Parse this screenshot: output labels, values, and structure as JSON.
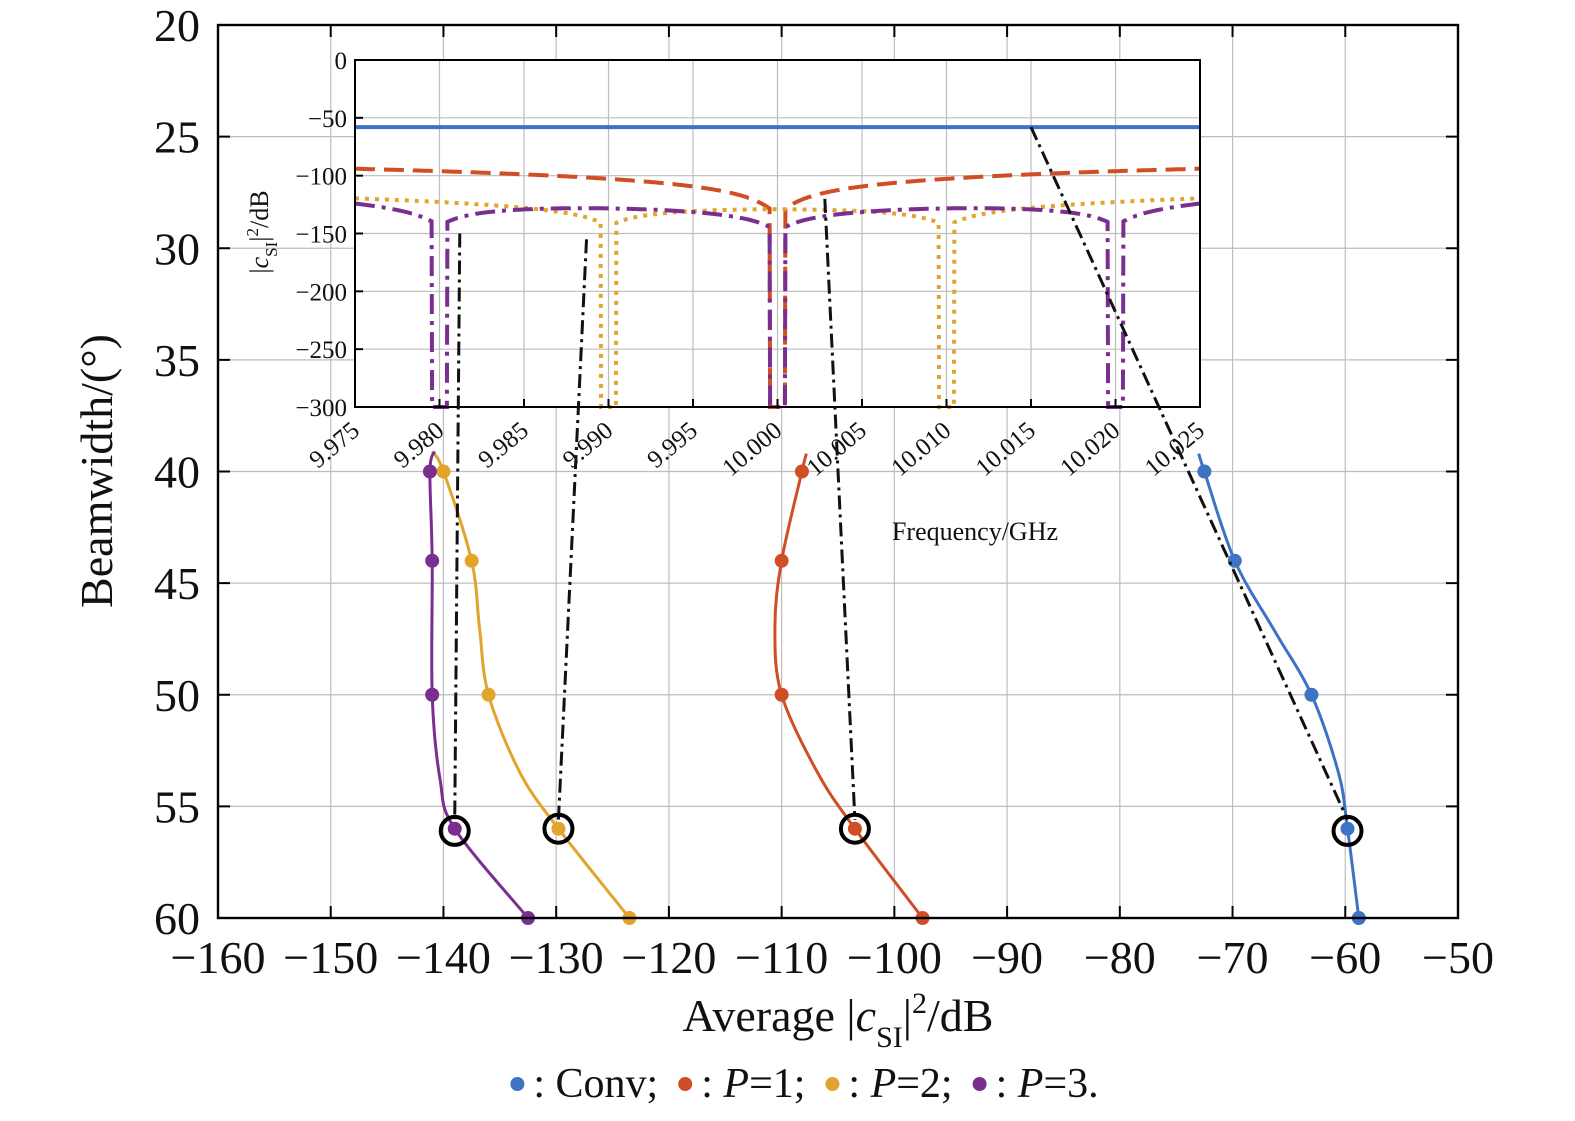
{
  "chart_data": [
    {
      "id": "main",
      "type": "line",
      "xlabel_parts": [
        "Average |",
        "c",
        "SI",
        "|",
        "2",
        "/dB"
      ],
      "ylabel": "Beamwidth/(°)",
      "xlim": [
        -160,
        -50
      ],
      "ylim": [
        20,
        60
      ],
      "y_reversed": true,
      "xticks": [
        -160,
        -150,
        -140,
        -130,
        -120,
        -110,
        -100,
        -90,
        -80,
        -70,
        -60,
        -50
      ],
      "xtick_labels": [
        "−160",
        "−150",
        "−140",
        "−130",
        "−120",
        "−110",
        "−100",
        "−90",
        "−80",
        "−70",
        "−60",
        "−50"
      ],
      "yticks": [
        20,
        25,
        30,
        35,
        40,
        45,
        50,
        55,
        60
      ],
      "ytick_labels": [
        "20",
        "25",
        "30",
        "35",
        "40",
        "45",
        "50",
        "55",
        "60"
      ],
      "grid": true,
      "series": [
        {
          "key": "conv",
          "name": "Conv",
          "color": "#3d72c4",
          "markers": [
            {
              "x": -72.5,
              "y": 40
            },
            {
              "x": -69.8,
              "y": 44
            },
            {
              "x": -63,
              "y": 50
            },
            {
              "x": -59.8,
              "y": 56
            },
            {
              "x": -58.8,
              "y": 60
            }
          ],
          "curve": [
            {
              "x": -73.0,
              "y": 39.2
            },
            {
              "x": -72.5,
              "y": 40
            },
            {
              "x": -69.8,
              "y": 44
            },
            {
              "x": -66.2,
              "y": 47.2
            },
            {
              "x": -63,
              "y": 50
            },
            {
              "x": -60.6,
              "y": 53.5
            },
            {
              "x": -59.8,
              "y": 56
            },
            {
              "x": -58.8,
              "y": 60
            }
          ]
        },
        {
          "key": "p1",
          "name": "P=1",
          "color": "#d04e25",
          "markers": [
            {
              "x": -108.2,
              "y": 40
            },
            {
              "x": -110,
              "y": 44
            },
            {
              "x": -110,
              "y": 50
            },
            {
              "x": -103.5,
              "y": 56
            },
            {
              "x": -97.5,
              "y": 60
            }
          ],
          "curve": [
            {
              "x": -107.8,
              "y": 39.2
            },
            {
              "x": -108.2,
              "y": 40
            },
            {
              "x": -110,
              "y": 44
            },
            {
              "x": -110.6,
              "y": 47
            },
            {
              "x": -110,
              "y": 50
            },
            {
              "x": -106.8,
              "y": 53.5
            },
            {
              "x": -103.5,
              "y": 56
            },
            {
              "x": -97.5,
              "y": 60
            }
          ]
        },
        {
          "key": "p2",
          "name": "P=2",
          "color": "#e1a42c",
          "markers": [
            {
              "x": -140,
              "y": 40
            },
            {
              "x": -137.5,
              "y": 44
            },
            {
              "x": -136,
              "y": 50
            },
            {
              "x": -129.8,
              "y": 56
            },
            {
              "x": -123.5,
              "y": 60
            }
          ],
          "curve": [
            {
              "x": -141,
              "y": 39.1
            },
            {
              "x": -140,
              "y": 40
            },
            {
              "x": -137.5,
              "y": 44
            },
            {
              "x": -136.8,
              "y": 47
            },
            {
              "x": -136,
              "y": 50
            },
            {
              "x": -133.2,
              "y": 53.5
            },
            {
              "x": -129.8,
              "y": 56
            },
            {
              "x": -123.5,
              "y": 60
            }
          ]
        },
        {
          "key": "p3",
          "name": "P=3",
          "color": "#7a2e90",
          "markers": [
            {
              "x": -141.2,
              "y": 40
            },
            {
              "x": -141,
              "y": 44
            },
            {
              "x": -141,
              "y": 50
            },
            {
              "x": -139,
              "y": 56
            },
            {
              "x": -132.5,
              "y": 60
            }
          ],
          "curve": [
            {
              "x": -140.8,
              "y": 39.1
            },
            {
              "x": -141.2,
              "y": 40
            },
            {
              "x": -141,
              "y": 44
            },
            {
              "x": -141,
              "y": 50
            },
            {
              "x": -140.3,
              "y": 53.8
            },
            {
              "x": -139,
              "y": 56
            },
            {
              "x": -132.5,
              "y": 60
            }
          ]
        }
      ],
      "highlight_markers": [
        {
          "x": -139,
          "y": 56.1
        },
        {
          "x": -129.8,
          "y": 56
        },
        {
          "x": -103.5,
          "y": 56
        },
        {
          "x": -59.8,
          "y": 56.1
        }
      ]
    },
    {
      "id": "inset",
      "type": "line",
      "xlabel": "Frequency/GHz",
      "ylabel_parts": [
        "|",
        "c",
        "SI",
        "|",
        "2",
        "/dB"
      ],
      "xlim": [
        9.975,
        10.025
      ],
      "ylim": [
        -300,
        0
      ],
      "xticks": [
        9.975,
        9.98,
        9.985,
        9.99,
        9.995,
        10.0,
        10.005,
        10.01,
        10.015,
        10.02,
        10.025
      ],
      "xtick_labels": [
        "9.975",
        "9.980",
        "9.985",
        "9.990",
        "9.995",
        "10.000",
        "10.005",
        "10.010",
        "10.015",
        "10.020",
        "10.025"
      ],
      "yticks": [
        0,
        -50,
        -100,
        -150,
        -200,
        -250,
        -300
      ],
      "ytick_labels": [
        "0",
        "−50",
        "−100",
        "−150",
        "−200",
        "−250",
        "−300"
      ],
      "grid": true,
      "series": [
        {
          "key": "conv",
          "name": "Conv",
          "color": "#3d72c4",
          "style": "solid",
          "model": {
            "kind": "flat",
            "level": -58
          }
        },
        {
          "key": "p1",
          "name": "P=1",
          "color": "#d04e25",
          "style": "dashed",
          "model": {
            "kind": "nulls",
            "base": -101,
            "nulls": [
              10.0
            ],
            "depth_coef": 20,
            "width": 0.0005,
            "floor": -300
          }
        },
        {
          "key": "p2",
          "name": "P=2",
          "color": "#e1a42c",
          "style": "dotted",
          "model": {
            "kind": "nulls",
            "base": -127,
            "nulls": [
              9.99,
              10.01
            ],
            "depth_coef": 12,
            "width": 0.0005,
            "floor": -300
          }
        },
        {
          "key": "p3",
          "name": "P=3",
          "color": "#7a2e90",
          "style": "dashdot",
          "model": {
            "kind": "nulls",
            "base": -132,
            "nulls": [
              9.98,
              10.0,
              10.02
            ],
            "depth_coef": 14,
            "width": 0.0005,
            "floor": -300
          }
        }
      ]
    }
  ],
  "callouts": [
    {
      "from_inset": {
        "x": 9.9812,
        "y": -150
      },
      "to_main": {
        "x": -139.0,
        "y": 55.6
      }
    },
    {
      "from_inset": {
        "x": 9.9887,
        "y": -155
      },
      "to_main": {
        "x": -129.8,
        "y": 55.6
      }
    },
    {
      "from_inset": {
        "x": 10.0028,
        "y": -120
      },
      "to_main": {
        "x": -103.5,
        "y": 55.6
      }
    },
    {
      "from_inset": {
        "x": 10.015,
        "y": -58
      },
      "to_main": {
        "x": -59.8,
        "y": 55.6
      }
    }
  ],
  "legend": {
    "entries": [
      {
        "key": "conv",
        "color": "#3d72c4",
        "prefix": ": ",
        "text": "Conv",
        "italic": "",
        "suffix": ";"
      },
      {
        "key": "p1",
        "color": "#d04e25",
        "prefix": ": ",
        "italic": "P",
        "text": "=1",
        "suffix": ";"
      },
      {
        "key": "p2",
        "color": "#e1a42c",
        "prefix": ": ",
        "italic": "P",
        "text": "=2",
        "suffix": ";"
      },
      {
        "key": "p3",
        "color": "#7a2e90",
        "prefix": ": ",
        "italic": "P",
        "text": "=3",
        "suffix": "."
      }
    ]
  }
}
